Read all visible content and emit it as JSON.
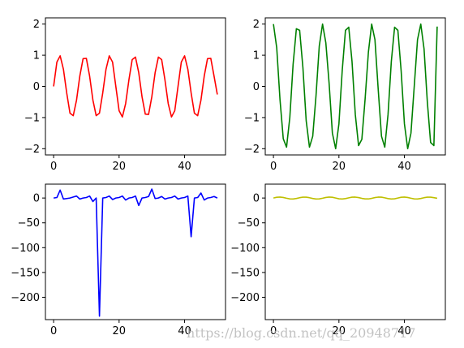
{
  "watermark": "https://blog.csdn.net/qq_20948717",
  "chart_data": [
    {
      "type": "line",
      "title": "",
      "xlabel": "",
      "ylabel": "",
      "xlim": [
        -2.5,
        52.5
      ],
      "ylim": [
        -2.2,
        2.2
      ],
      "xticks": [
        0,
        20,
        40
      ],
      "yticks": [
        2,
        1,
        0,
        -1,
        -2
      ],
      "grid": false,
      "series": [
        {
          "color": "#ff0000",
          "x": [
            0,
            1,
            2,
            3,
            4,
            5,
            6,
            7,
            8,
            9,
            10,
            11,
            12,
            13,
            14,
            15,
            16,
            17,
            18,
            19,
            20,
            21,
            22,
            23,
            24,
            25,
            26,
            27,
            28,
            29,
            30,
            31,
            32,
            33,
            34,
            35,
            36,
            37,
            38,
            39,
            40,
            41,
            42,
            43,
            44,
            45,
            46,
            47,
            48,
            49,
            50
          ],
          "values": [
            0,
            0.78,
            0.98,
            0.55,
            -0.21,
            -0.86,
            -0.94,
            -0.44,
            0.33,
            0.89,
            0.9,
            0.33,
            -0.44,
            -0.94,
            -0.86,
            -0.21,
            0.55,
            0.98,
            0.78,
            0.0,
            -0.78,
            -0.98,
            -0.55,
            0.21,
            0.86,
            0.94,
            0.44,
            -0.33,
            -0.89,
            -0.9,
            -0.33,
            0.44,
            0.94,
            0.86,
            0.21,
            -0.55,
            -0.98,
            -0.78,
            0.0,
            0.78,
            0.98,
            0.55,
            -0.21,
            -0.86,
            -0.94,
            -0.44,
            0.33,
            0.89,
            0.9,
            0.33,
            -0.26
          ]
        }
      ]
    },
    {
      "type": "line",
      "title": "",
      "xlabel": "",
      "ylabel": "",
      "xlim": [
        -2.5,
        52.5
      ],
      "ylim": [
        -2.2,
        2.2
      ],
      "xticks": [
        0,
        20,
        40
      ],
      "yticks": [
        2,
        1,
        0,
        -1,
        -2
      ],
      "grid": false,
      "series": [
        {
          "color": "#008000",
          "x": [
            0,
            1,
            2,
            3,
            4,
            5,
            6,
            7,
            8,
            9,
            10,
            11,
            12,
            13,
            14,
            15,
            16,
            17,
            18,
            19,
            20,
            21,
            22,
            23,
            24,
            25,
            26,
            27,
            28,
            29,
            30,
            31,
            32,
            33,
            34,
            35,
            36,
            37,
            38,
            39,
            40,
            41,
            42,
            43,
            44,
            45,
            46,
            47,
            48,
            49,
            50
          ],
          "values": [
            2,
            1.24,
            -0.42,
            -1.68,
            -1.95,
            -1.0,
            0.7,
            1.85,
            1.8,
            0.6,
            -1.1,
            -1.95,
            -1.6,
            -0.3,
            1.3,
            2.0,
            1.4,
            0.1,
            -1.5,
            -2.0,
            -1.2,
            0.5,
            1.8,
            1.9,
            0.8,
            -0.9,
            -1.9,
            -1.7,
            -0.4,
            1.1,
            2.0,
            1.5,
            -0.1,
            -1.6,
            -1.95,
            -0.9,
            0.8,
            1.9,
            1.8,
            0.5,
            -1.2,
            -2.0,
            -1.5,
            0.0,
            1.5,
            2.0,
            1.2,
            -0.5,
            -1.8,
            -1.9,
            1.92
          ]
        }
      ]
    },
    {
      "type": "line",
      "title": "",
      "xlabel": "",
      "ylabel": "",
      "xlim": [
        -2.5,
        52.5
      ],
      "ylim": [
        -245,
        28
      ],
      "xticks": [
        0,
        20,
        40
      ],
      "yticks": [
        0,
        -50,
        -100,
        -150,
        -200
      ],
      "grid": false,
      "series": [
        {
          "color": "#0000ff",
          "x": [
            0,
            1,
            2,
            3,
            4,
            5,
            6,
            7,
            8,
            9,
            10,
            11,
            12,
            13,
            14,
            15,
            16,
            17,
            18,
            19,
            20,
            21,
            22,
            23,
            24,
            25,
            26,
            27,
            28,
            29,
            30,
            31,
            32,
            33,
            34,
            35,
            36,
            37,
            38,
            39,
            40,
            41,
            42,
            43,
            44,
            45,
            46,
            47,
            48,
            49,
            50
          ],
          "values": [
            0,
            1,
            16,
            -2,
            -1,
            0,
            2,
            4,
            -2,
            0,
            1,
            4,
            -7,
            0,
            -238,
            0,
            1,
            4,
            -3,
            0,
            1,
            4,
            -4,
            0,
            1,
            4,
            -15,
            0,
            1,
            3,
            18,
            -1,
            0,
            3,
            -2,
            0,
            1,
            4,
            -2,
            0,
            1,
            4,
            -78,
            0,
            1,
            10,
            -4,
            0,
            1,
            3,
            0
          ]
        }
      ]
    },
    {
      "type": "line",
      "title": "",
      "xlabel": "",
      "ylabel": "",
      "xlim": [
        -2.5,
        52.5
      ],
      "ylim": [
        -245,
        28
      ],
      "xticks": [
        0,
        20,
        40
      ],
      "yticks": [
        0,
        -50,
        -100,
        -150,
        -200
      ],
      "grid": false,
      "series": [
        {
          "color": "#bfbf00",
          "x": [
            0,
            1,
            2,
            3,
            4,
            5,
            6,
            7,
            8,
            9,
            10,
            11,
            12,
            13,
            14,
            15,
            16,
            17,
            18,
            19,
            20,
            21,
            22,
            23,
            24,
            25,
            26,
            27,
            28,
            29,
            30,
            31,
            32,
            33,
            34,
            35,
            36,
            37,
            38,
            39,
            40,
            41,
            42,
            43,
            44,
            45,
            46,
            47,
            48,
            49,
            50
          ],
          "values": [
            0,
            1.56,
            1.96,
            1.1,
            -0.42,
            -1.72,
            -1.88,
            -0.88,
            0.66,
            1.78,
            1.8,
            0.66,
            -0.88,
            -1.88,
            -1.72,
            -0.42,
            1.1,
            1.96,
            1.56,
            0.0,
            -1.56,
            -1.96,
            -1.1,
            0.42,
            1.72,
            1.88,
            0.88,
            -0.66,
            -1.78,
            -1.8,
            -0.66,
            0.88,
            1.88,
            1.72,
            0.42,
            -1.1,
            -1.96,
            -1.56,
            0.0,
            1.56,
            1.96,
            1.1,
            -0.42,
            -1.72,
            -1.88,
            -0.88,
            0.66,
            1.78,
            1.8,
            0.66,
            -0.52
          ]
        }
      ]
    }
  ]
}
